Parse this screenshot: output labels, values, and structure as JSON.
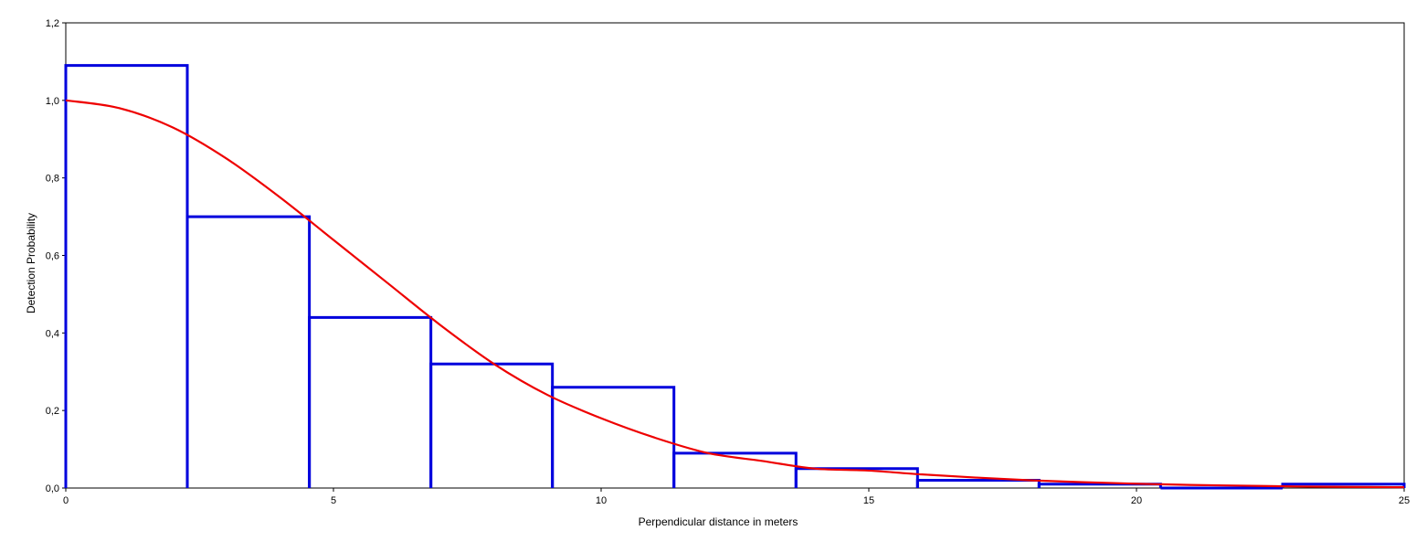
{
  "chart_data": {
    "type": "bar",
    "title": "",
    "xlabel": "Perpendicular distance in meters",
    "ylabel": "Detection Probability",
    "xlim": [
      0,
      25
    ],
    "ylim": [
      0,
      1.2
    ],
    "grid": false,
    "legend": "none",
    "x_ticks": [
      {
        "value": 0,
        "label": "0"
      },
      {
        "value": 5,
        "label": "5"
      },
      {
        "value": 10,
        "label": "10"
      },
      {
        "value": 15,
        "label": "15"
      },
      {
        "value": 20,
        "label": "20"
      },
      {
        "value": 25,
        "label": "25"
      }
    ],
    "y_ticks": [
      {
        "value": 0,
        "label": "0,0"
      },
      {
        "value": 0.2,
        "label": "0,2"
      },
      {
        "value": 0.4,
        "label": "0,4"
      },
      {
        "value": 0.6,
        "label": "0,6"
      },
      {
        "value": 0.8,
        "label": "0,8"
      },
      {
        "value": 1.0,
        "label": "1,0"
      },
      {
        "value": 1.2,
        "label": "1,2"
      }
    ],
    "histogram": {
      "bins": [
        {
          "start": 0,
          "end": 2.27,
          "value": 1.09
        },
        {
          "start": 2.27,
          "end": 4.55,
          "value": 0.7
        },
        {
          "start": 4.55,
          "end": 6.82,
          "value": 0.44
        },
        {
          "start": 6.82,
          "end": 9.09,
          "value": 0.32
        },
        {
          "start": 9.09,
          "end": 11.36,
          "value": 0.26
        },
        {
          "start": 11.36,
          "end": 13.64,
          "value": 0.09
        },
        {
          "start": 13.64,
          "end": 15.91,
          "value": 0.05
        },
        {
          "start": 15.91,
          "end": 18.18,
          "value": 0.02
        },
        {
          "start": 18.18,
          "end": 20.45,
          "value": 0.01
        },
        {
          "start": 20.45,
          "end": 22.73,
          "value": 0.0
        },
        {
          "start": 22.73,
          "end": 25.0,
          "value": 0.01
        }
      ]
    },
    "curve": {
      "x": [
        0,
        1,
        2,
        3,
        4,
        5,
        6,
        7,
        8,
        9,
        10,
        11,
        12,
        13,
        14,
        15,
        16,
        17,
        18,
        19,
        20,
        21,
        22,
        23,
        24,
        25
      ],
      "y": [
        1.0,
        0.98,
        0.93,
        0.85,
        0.75,
        0.64,
        0.53,
        0.42,
        0.32,
        0.24,
        0.18,
        0.13,
        0.09,
        0.07,
        0.05,
        0.045,
        0.035,
        0.027,
        0.02,
        0.015,
        0.011,
        0.008,
        0.006,
        0.004,
        0.003,
        0.002
      ]
    },
    "colors": {
      "histogram": "#0000dd",
      "curve": "#ee0000",
      "axis": "#000000"
    }
  }
}
